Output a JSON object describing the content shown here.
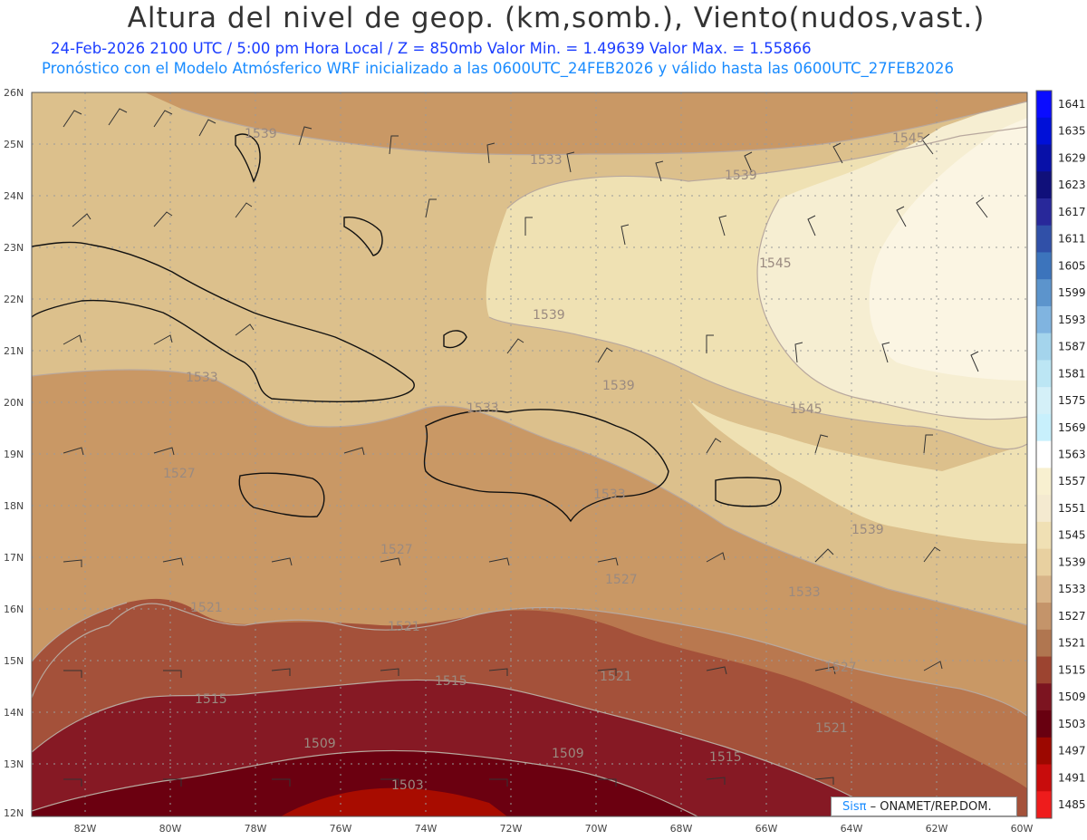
{
  "header": {
    "title": "Altura del nivel de geop. (km,somb.), Viento(nudos,vast.)",
    "line1": "24-Feb-2026  2100 UTC / 5:00 pm Hora Local / Z = 850mb     Valor Min. = 1.49639  Valor Max. = 1.55866",
    "line2": "Pronóstico con el Modelo Atmósferico WRF inicializado a las 0600UTC_24FEB2026 y válido hasta las  0600UTC_27FEB2026"
  },
  "map": {
    "lon_labels": [
      "82W",
      "80W",
      "78W",
      "76W",
      "74W",
      "72W",
      "70W",
      "68W",
      "66W",
      "64W",
      "62W",
      "60W"
    ],
    "lat_labels": [
      "26N",
      "25N",
      "24N",
      "23N",
      "22N",
      "21N",
      "20N",
      "19N",
      "18N",
      "17N",
      "16N",
      "15N",
      "14N",
      "13N",
      "12N"
    ],
    "contour_labels": [
      "1545",
      "1545",
      "1545",
      "1539",
      "1539",
      "1539",
      "1539",
      "1539",
      "1533",
      "1533",
      "1533",
      "1533",
      "1533",
      "1527",
      "1527",
      "1527",
      "1527",
      "1521",
      "1521",
      "1521",
      "1521",
      "1515",
      "1515",
      "1515",
      "1509",
      "1509",
      "1503"
    ],
    "colors": {
      "c1497": "#a80c00",
      "c1503": "#6b0010",
      "c1509": "#861924",
      "c1515": "#a4513a",
      "c1521": "#b9784f",
      "c1527": "#c99865",
      "c1533": "#dcc08c",
      "c1539": "#efe1b3",
      "c1545": "#f6eed2",
      "c1551": "#fbf5e3"
    }
  },
  "colorbar": {
    "labels": [
      "1641",
      "1635",
      "1629",
      "1623",
      "1617",
      "1611",
      "1605",
      "1599",
      "1593",
      "1587",
      "1581",
      "1575",
      "1569",
      "1563",
      "1557",
      "1551",
      "1545",
      "1539",
      "1533",
      "1527",
      "1521",
      "1515",
      "1509",
      "1503",
      "1497",
      "1491",
      "1485"
    ],
    "colors": [
      "#0a0cff",
      "#0010d8",
      "#0810a8",
      "#10107a",
      "#28289a",
      "#3050a8",
      "#3c74bc",
      "#5c94cc",
      "#80b4e0",
      "#a4d4ec",
      "#bce6f4",
      "#d4f0f8",
      "#c8f0fc",
      "#ffffff",
      "#f8f0d0",
      "#f4ead0",
      "#f0e0b4",
      "#e8d0a0",
      "#d8b488",
      "#c4946a",
      "#b07650",
      "#9c4430",
      "#7c1420",
      "#680010",
      "#9c0800",
      "#c80c0c",
      "#ee1c1c"
    ]
  },
  "credit": {
    "logo": "Sisπ",
    "text": " – ONAMET/REP.DOM."
  }
}
